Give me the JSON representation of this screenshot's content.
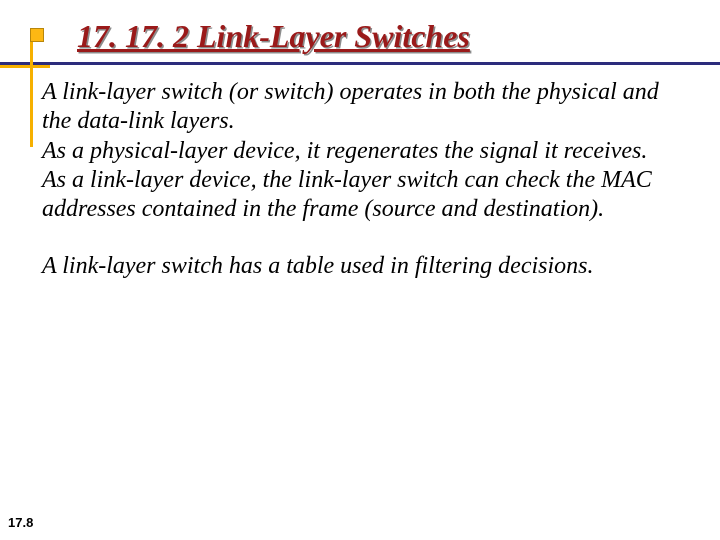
{
  "colors": {
    "background": "#ffffff",
    "title_color": "#9a1a1a",
    "title_shadow": "rgba(0,0,0,0.45)",
    "rule_navy": "#2c2c7c",
    "rule_gold": "#f6b000",
    "bullet_fill": "#fdb813",
    "bullet_border": "#b8860b",
    "body_text": "#000000"
  },
  "typography": {
    "title_fontsize": 32,
    "body_fontsize": 24,
    "pagenum_fontsize": 13,
    "title_font": "Times New Roman",
    "body_font": "Times New Roman",
    "pagenum_font": "Arial"
  },
  "title": "17. 17. 2  Link-Layer Switches",
  "body": {
    "para1": "A link-layer switch (or switch) operates in both the physical and the data-link layers.\nAs a physical-layer device, it regenerates the signal it receives.\nAs a link-layer device, the link-layer switch can check the MAC addresses contained in the frame (source and destination).",
    "para2": "A link-layer switch has a table used in filtering decisions."
  },
  "page_number": "17.8"
}
